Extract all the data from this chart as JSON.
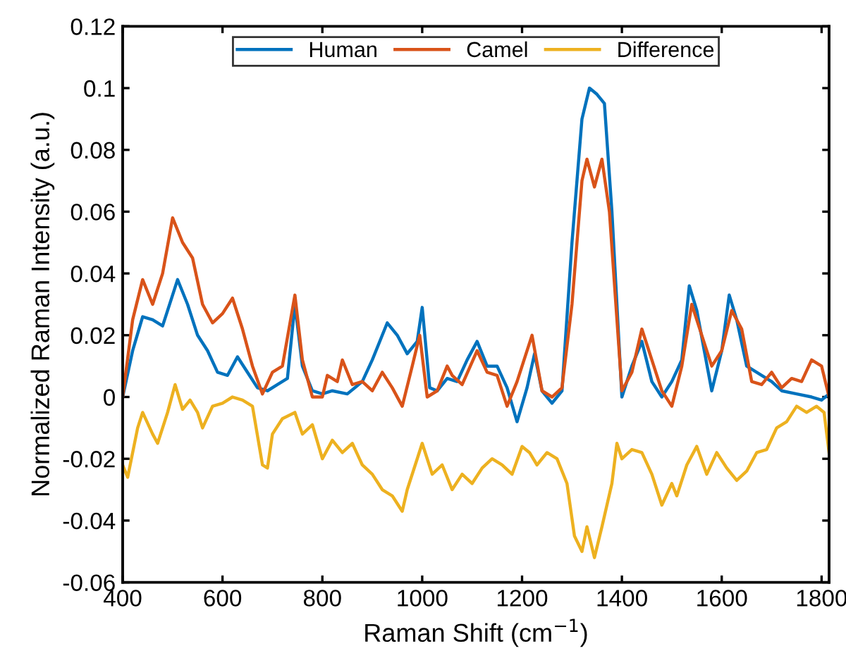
{
  "chart_data": {
    "type": "line",
    "xlabel": "Raman Shift (cm$^{−1}$)",
    "ylabel": "Normalized Raman Intensity (a.u.)",
    "xlim": [
      400,
      1815
    ],
    "ylim": [
      -0.06,
      0.12
    ],
    "xticks": [
      400,
      600,
      800,
      1000,
      1200,
      1400,
      1600,
      1800
    ],
    "yticks": [
      -0.06,
      -0.04,
      -0.02,
      0,
      0.02,
      0.04,
      0.06,
      0.08,
      0.1,
      0.12
    ],
    "legend": "top",
    "grid": false,
    "marker": "none",
    "line_style": "solid",
    "series": [
      {
        "name": "Human",
        "color": "#0072bd",
        "x": [
          400,
          420,
          440,
          460,
          480,
          500,
          510,
          530,
          550,
          570,
          590,
          610,
          630,
          650,
          670,
          690,
          710,
          730,
          745,
          760,
          780,
          800,
          820,
          850,
          880,
          900,
          930,
          950,
          970,
          990,
          1000,
          1015,
          1030,
          1050,
          1070,
          1090,
          1110,
          1130,
          1150,
          1170,
          1190,
          1210,
          1225,
          1240,
          1260,
          1280,
          1300,
          1320,
          1335,
          1350,
          1365,
          1380,
          1400,
          1420,
          1440,
          1460,
          1480,
          1500,
          1520,
          1535,
          1550,
          1565,
          1580,
          1600,
          1615,
          1630,
          1650,
          1680,
          1700,
          1720,
          1750,
          1780,
          1800,
          1815
        ],
        "values": [
          0,
          0.015,
          0.026,
          0.025,
          0.023,
          0.033,
          0.038,
          0.03,
          0.02,
          0.015,
          0.008,
          0.007,
          0.013,
          0.008,
          0.003,
          0.002,
          0.004,
          0.006,
          0.03,
          0.01,
          0.002,
          0.001,
          0.002,
          0.001,
          0.005,
          0.012,
          0.024,
          0.02,
          0.014,
          0.018,
          0.029,
          0.003,
          0.002,
          0.006,
          0.005,
          0.012,
          0.018,
          0.01,
          0.01,
          0.003,
          -0.008,
          0.003,
          0.014,
          0.002,
          -0.002,
          0.002,
          0.05,
          0.09,
          0.1,
          0.098,
          0.095,
          0.06,
          0.0,
          0.01,
          0.018,
          0.005,
          0.0,
          0.005,
          0.012,
          0.036,
          0.028,
          0.015,
          0.002,
          0.015,
          0.033,
          0.025,
          0.01,
          0.007,
          0.005,
          0.002,
          0.001,
          0.0,
          -0.001,
          0.001
        ]
      },
      {
        "name": "Camel",
        "color": "#d95319",
        "x": [
          400,
          420,
          440,
          460,
          480,
          500,
          520,
          540,
          560,
          580,
          600,
          620,
          640,
          660,
          680,
          700,
          720,
          745,
          760,
          780,
          800,
          810,
          830,
          840,
          860,
          880,
          900,
          920,
          940,
          960,
          980,
          995,
          1010,
          1030,
          1050,
          1060,
          1080,
          1110,
          1130,
          1150,
          1170,
          1190,
          1220,
          1240,
          1260,
          1280,
          1300,
          1320,
          1330,
          1345,
          1360,
          1375,
          1400,
          1420,
          1440,
          1460,
          1480,
          1500,
          1520,
          1540,
          1560,
          1580,
          1600,
          1620,
          1640,
          1660,
          1680,
          1700,
          1720,
          1740,
          1760,
          1780,
          1800,
          1815
        ],
        "values": [
          0,
          0.025,
          0.038,
          0.03,
          0.04,
          0.058,
          0.05,
          0.045,
          0.03,
          0.024,
          0.027,
          0.032,
          0.022,
          0.01,
          0.001,
          0.008,
          0.01,
          0.033,
          0.012,
          0.0,
          0.0,
          0.007,
          0.005,
          0.012,
          0.004,
          0.005,
          0.002,
          0.008,
          0.003,
          -0.003,
          0.01,
          0.02,
          0.0,
          0.002,
          0.01,
          0.007,
          0.004,
          0.015,
          0.008,
          0.007,
          -0.003,
          0.005,
          0.02,
          0.002,
          0.0,
          0.003,
          0.03,
          0.07,
          0.077,
          0.068,
          0.077,
          0.06,
          0.002,
          0.008,
          0.022,
          0.012,
          0.002,
          -0.003,
          0.01,
          0.03,
          0.02,
          0.01,
          0.015,
          0.028,
          0.022,
          0.005,
          0.004,
          0.008,
          0.003,
          0.006,
          0.005,
          0.012,
          0.01,
          0.0
        ]
      },
      {
        "name": "Difference",
        "color": "#edb120",
        "x": [
          400,
          410,
          430,
          440,
          460,
          470,
          490,
          505,
          520,
          535,
          550,
          560,
          580,
          600,
          620,
          640,
          660,
          680,
          690,
          700,
          720,
          745,
          760,
          780,
          800,
          820,
          840,
          860,
          880,
          900,
          920,
          940,
          960,
          970,
          990,
          1000,
          1020,
          1040,
          1060,
          1080,
          1100,
          1120,
          1140,
          1160,
          1180,
          1200,
          1215,
          1230,
          1250,
          1270,
          1290,
          1305,
          1320,
          1330,
          1345,
          1360,
          1380,
          1390,
          1400,
          1420,
          1440,
          1460,
          1480,
          1500,
          1510,
          1530,
          1550,
          1570,
          1590,
          1610,
          1630,
          1650,
          1670,
          1690,
          1710,
          1730,
          1750,
          1770,
          1790,
          1805,
          1815
        ],
        "values": [
          -0.022,
          -0.026,
          -0.01,
          -0.005,
          -0.012,
          -0.015,
          -0.005,
          0.004,
          -0.004,
          -0.001,
          -0.005,
          -0.01,
          -0.003,
          -0.002,
          0.0,
          -0.001,
          -0.003,
          -0.022,
          -0.023,
          -0.012,
          -0.007,
          -0.005,
          -0.012,
          -0.009,
          -0.02,
          -0.014,
          -0.018,
          -0.015,
          -0.022,
          -0.025,
          -0.03,
          -0.032,
          -0.037,
          -0.03,
          -0.02,
          -0.015,
          -0.025,
          -0.022,
          -0.03,
          -0.025,
          -0.028,
          -0.023,
          -0.02,
          -0.022,
          -0.025,
          -0.016,
          -0.018,
          -0.022,
          -0.018,
          -0.02,
          -0.028,
          -0.045,
          -0.05,
          -0.042,
          -0.052,
          -0.042,
          -0.028,
          -0.015,
          -0.02,
          -0.017,
          -0.018,
          -0.025,
          -0.035,
          -0.028,
          -0.032,
          -0.022,
          -0.016,
          -0.025,
          -0.018,
          -0.023,
          -0.027,
          -0.024,
          -0.018,
          -0.017,
          -0.01,
          -0.008,
          -0.003,
          -0.005,
          -0.003,
          -0.005,
          -0.018
        ]
      }
    ]
  }
}
